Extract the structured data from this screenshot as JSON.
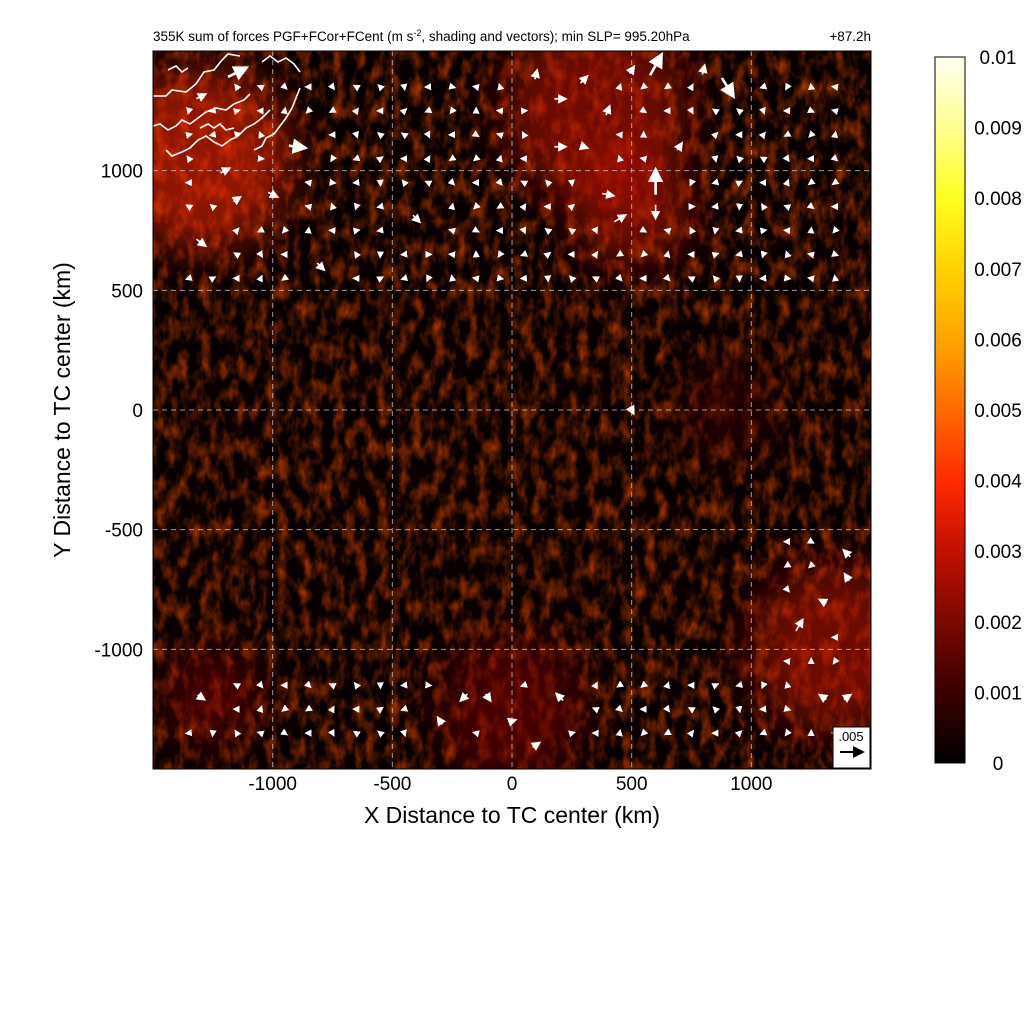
{
  "chart_data": {
    "type": "heatmap",
    "title_prefix": "355K sum of forces PGF+FCor+FCent (m s",
    "title_sup": "-2",
    "title_suffix": ", shading and vectors); min SLP= 995.20hPa",
    "time_label": "+87.2h",
    "xlabel": "X Distance to TC center (km)",
    "ylabel": "Y Distance to TC center (km)",
    "xlim": [
      -1500,
      1500
    ],
    "ylim": [
      -1500,
      1500
    ],
    "x_ticks": [
      -1000,
      -500,
      0,
      500,
      1000
    ],
    "y_ticks": [
      -1000,
      -500,
      0,
      500,
      1000
    ],
    "grid": true,
    "colorbar": {
      "range": [
        0,
        0.01
      ],
      "ticks": [
        "0",
        "0.001",
        "0.002",
        "0.003",
        "0.004",
        "0.005",
        "0.006",
        "0.007",
        "0.008",
        "0.009",
        "0.01"
      ],
      "colors": [
        "#000000",
        "#3a0000",
        "#7a0800",
        "#c21000",
        "#ff2a00",
        "#ff6a00",
        "#ffa500",
        "#ffd200",
        "#ffff20",
        "#ffff90",
        "#fffff2"
      ]
    },
    "reference_vector_label": ".005",
    "reference_vector_magnitude": 0.005,
    "coastline_color": "#ffffff",
    "shading_regions": [
      {
        "x": -1300,
        "y": 1050,
        "r": 380,
        "value": 0.0035
      },
      {
        "x": 350,
        "y": 1250,
        "r": 380,
        "value": 0.003
      },
      {
        "x": 500,
        "y": 850,
        "r": 250,
        "value": 0.0028
      },
      {
        "x": 1350,
        "y": -1000,
        "r": 350,
        "value": 0.0025
      },
      {
        "x": 0,
        "y": -1250,
        "r": 300,
        "value": 0.0022
      },
      {
        "x": -1250,
        "y": -1200,
        "r": 200,
        "value": 0.0018
      },
      {
        "x": 900,
        "y": 0,
        "r": 200,
        "value": 0.0012
      }
    ],
    "vectors": [
      {
        "x": -1150,
        "y": 1410,
        "u": 0.004,
        "v": 0.002
      },
      {
        "x": -1300,
        "y": 1310,
        "u": 0.002,
        "v": 0.001
      },
      {
        "x": -900,
        "y": 1100,
        "u": 0.0035,
        "v": -0.0005
      },
      {
        "x": -1200,
        "y": 1000,
        "u": 0.002,
        "v": 0.001
      },
      {
        "x": -1000,
        "y": 900,
        "u": 0.002,
        "v": -0.001
      },
      {
        "x": -1300,
        "y": 700,
        "u": 0.002,
        "v": -0.0015
      },
      {
        "x": -1150,
        "y": 880,
        "u": 0.0015,
        "v": 0.001
      },
      {
        "x": -800,
        "y": 600,
        "u": 0.0015,
        "v": -0.0015
      },
      {
        "x": -400,
        "y": 800,
        "u": 0.0015,
        "v": -0.0015
      },
      {
        "x": 100,
        "y": 1400,
        "u": 0.0005,
        "v": 0.002
      },
      {
        "x": 200,
        "y": 1300,
        "u": 0.0025,
        "v": 0.0
      },
      {
        "x": 300,
        "y": 1380,
        "u": 0.0015,
        "v": 0.0015
      },
      {
        "x": 400,
        "y": 1250,
        "u": 0.0008,
        "v": 0.002
      },
      {
        "x": 500,
        "y": 1420,
        "u": 0.001,
        "v": 0.0015
      },
      {
        "x": 600,
        "y": 1440,
        "u": 0.0025,
        "v": 0.0045
      },
      {
        "x": 900,
        "y": 1350,
        "u": 0.0025,
        "v": -0.004
      },
      {
        "x": 800,
        "y": 1420,
        "u": 0.0005,
        "v": 0.002
      },
      {
        "x": 600,
        "y": 950,
        "u": 0.0,
        "v": 0.0055
      },
      {
        "x": 600,
        "y": 830,
        "u": 0.0,
        "v": -0.003
      },
      {
        "x": 450,
        "y": 800,
        "u": 0.0025,
        "v": 0.0015
      },
      {
        "x": 300,
        "y": 1100,
        "u": 0.0015,
        "v": -0.0005
      },
      {
        "x": 200,
        "y": 1100,
        "u": 0.0025,
        "v": 0.0
      },
      {
        "x": 400,
        "y": 900,
        "u": 0.0025,
        "v": -0.0005
      },
      {
        "x": 700,
        "y": 1100,
        "u": 0.001,
        "v": 0.0015
      },
      {
        "x": 1200,
        "y": -900,
        "u": 0.0015,
        "v": 0.0025
      },
      {
        "x": 1300,
        "y": -800,
        "u": -0.0015,
        "v": 0.0008
      },
      {
        "x": 1400,
        "y": -700,
        "u": -0.001,
        "v": 0.0015
      },
      {
        "x": 1400,
        "y": -600,
        "u": -0.0015,
        "v": 0.0015
      },
      {
        "x": 1300,
        "y": -1200,
        "u": -0.0015,
        "v": 0.001
      },
      {
        "x": 1400,
        "y": -1200,
        "u": 0.0015,
        "v": 0.001
      },
      {
        "x": -200,
        "y": -1200,
        "u": -0.0015,
        "v": -0.0015
      },
      {
        "x": -100,
        "y": -1200,
        "u": 0.001,
        "v": -0.0015
      },
      {
        "x": 200,
        "y": -1200,
        "u": -0.0015,
        "v": 0.0015
      },
      {
        "x": 0,
        "y": -1300,
        "u": 0.0015,
        "v": 0.0005
      },
      {
        "x": -300,
        "y": -1300,
        "u": -0.001,
        "v": 0.0015
      },
      {
        "x": 100,
        "y": -1400,
        "u": 0.0015,
        "v": 0.001
      },
      {
        "x": -1300,
        "y": -1200,
        "u": 0.0015,
        "v": -0.001
      },
      {
        "x": 500,
        "y": 0,
        "u": 0.0008,
        "v": -0.0015
      }
    ]
  },
  "icons": {
    "reference_arrow": "right-arrow"
  }
}
